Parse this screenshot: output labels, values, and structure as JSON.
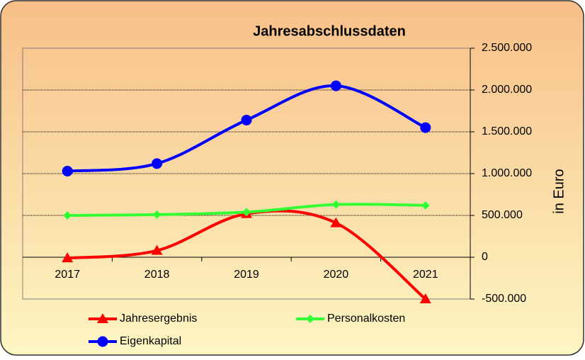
{
  "chart_data": {
    "type": "line",
    "title": "Jahresabschlussdaten",
    "y_axis_label": "in Euro",
    "categories": [
      "2017",
      "2018",
      "2019",
      "2020",
      "2021"
    ],
    "series": [
      {
        "name": "Jahresergebnis",
        "color": "#ff0000",
        "marker": "triangle",
        "values": [
          -10000,
          80000,
          520000,
          410000,
          -500000
        ]
      },
      {
        "name": "Personalkosten",
        "color": "#33ff33",
        "marker": "diamond",
        "values": [
          500000,
          510000,
          540000,
          630000,
          620000
        ]
      },
      {
        "name": "Eigenkapital",
        "color": "#0000ff",
        "marker": "circle",
        "values": [
          1030000,
          1120000,
          1640000,
          2050000,
          1550000
        ]
      }
    ],
    "ylim": [
      -500000,
      2500000
    ],
    "yticks": [
      {
        "value": -500000,
        "label": "-500.000"
      },
      0,
      {
        "value": 500000,
        "label": "500.000"
      },
      {
        "value": 1000000,
        "label": "1.000.000"
      },
      {
        "value": 1500000,
        "label": "1.500.000"
      },
      {
        "value": 2000000,
        "label": "2.000.000"
      },
      {
        "value": 2500000,
        "label": "2.500.000"
      }
    ],
    "grid": true,
    "smooth": true,
    "y_axis_side": "right",
    "legend": "bottom"
  }
}
